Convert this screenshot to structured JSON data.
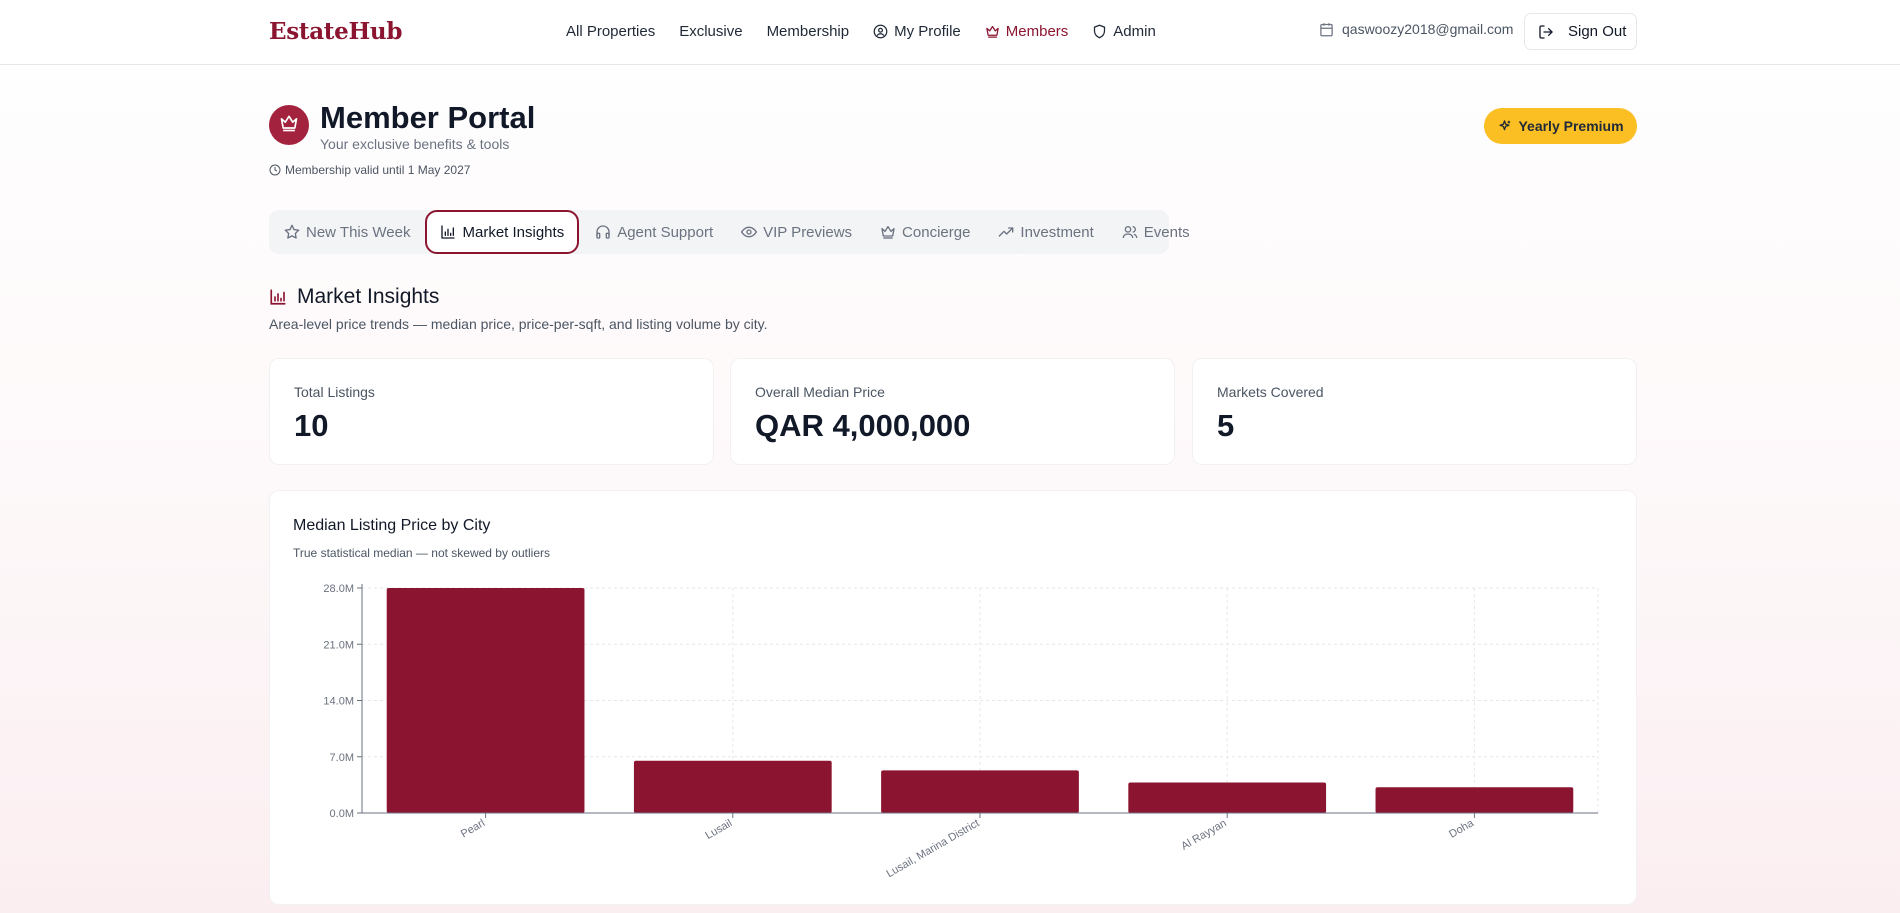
{
  "app": {
    "logo": "EstateHub"
  },
  "nav": {
    "items": [
      {
        "label": "All Properties",
        "icon": "",
        "active": false
      },
      {
        "label": "Exclusive",
        "icon": "",
        "active": false
      },
      {
        "label": "Membership",
        "icon": "",
        "active": false
      },
      {
        "label": "My Profile",
        "icon": "user-circle-icon",
        "active": false
      },
      {
        "label": "Members",
        "icon": "crown-icon",
        "active": true
      },
      {
        "label": "Admin",
        "icon": "shield-icon",
        "active": false
      }
    ],
    "user_email": "qaswoozy2018@gmail.com",
    "sign_out_label": "Sign Out"
  },
  "portal": {
    "title": "Member Portal",
    "subtitle": "Your exclusive benefits & tools",
    "validity": "Membership valid until 1 May 2027",
    "plan_badge": "Yearly Premium"
  },
  "tabs": [
    {
      "label": "New This Week",
      "icon": "star-icon",
      "active": false
    },
    {
      "label": "Market Insights",
      "icon": "bar-chart-icon",
      "active": true
    },
    {
      "label": "Agent Support",
      "icon": "headphones-icon",
      "active": false
    },
    {
      "label": "VIP Previews",
      "icon": "eye-icon",
      "active": false
    },
    {
      "label": "Concierge",
      "icon": "crown-icon",
      "active": false
    },
    {
      "label": "Investment",
      "icon": "trending-up-icon",
      "active": false
    },
    {
      "label": "Events",
      "icon": "users-icon",
      "active": false
    }
  ],
  "section": {
    "title": "Market Insights",
    "description": "Area-level price trends — median price, price-per-sqft, and listing volume by city."
  },
  "stats": [
    {
      "label": "Total Listings",
      "value": "10"
    },
    {
      "label": "Overall Median Price",
      "value": "QAR 4,000,000"
    },
    {
      "label": "Markets Covered",
      "value": "5"
    }
  ],
  "colors": {
    "brand": "#8b1530",
    "accent": "#fbbf24",
    "bar": "#8b1530"
  },
  "chart_data": {
    "type": "bar",
    "title": "Median Listing Price by City",
    "subtitle": "True statistical median — not skewed by outliers",
    "categories": [
      "Pearl",
      "Lusail",
      "Lusail, Marina District",
      "Al Rayyan",
      "Doha"
    ],
    "values": [
      28000000,
      6500000,
      5300000,
      3800000,
      3200000
    ],
    "yticks": [
      0,
      7000000,
      14000000,
      21000000,
      28000000
    ],
    "ytick_labels": [
      "0.0M",
      "7.0M",
      "14.0M",
      "21.0M",
      "28.0M"
    ],
    "ylim": [
      0,
      28000000
    ],
    "grid": true,
    "xlabel": "",
    "ylabel": ""
  }
}
